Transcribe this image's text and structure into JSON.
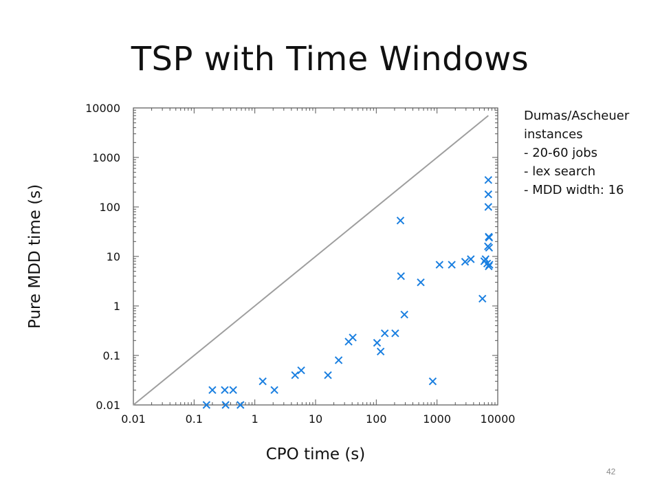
{
  "slide": {
    "title": "TSP with Time Windows",
    "page_number": "42",
    "notes": [
      "Dumas/Ascheuer",
      "instances",
      "- 20-60 jobs",
      "- lex search",
      "- MDD width: 16"
    ]
  },
  "chart_data": {
    "type": "scatter",
    "title": "",
    "xlabel": "CPO time (s)",
    "ylabel": "Pure MDD time (s)",
    "x_scale": "log",
    "y_scale": "log",
    "xlim": [
      0.01,
      10000
    ],
    "ylim": [
      0.01,
      10000
    ],
    "x_ticks": [
      "0.01",
      "0.1",
      "1",
      "10",
      "100",
      "1000",
      "10000"
    ],
    "y_ticks": [
      "0.01",
      "0.1",
      "1",
      "10",
      "100",
      "1000",
      "10000"
    ],
    "grid": false,
    "legend": "none",
    "reference_line": {
      "from": [
        0.01,
        0.01
      ],
      "to": [
        7000,
        7000
      ],
      "color": "#9e9e9e"
    },
    "marker": "x",
    "marker_color": "#1a7fe0",
    "points": [
      [
        0.16,
        0.01
      ],
      [
        0.2,
        0.02
      ],
      [
        0.32,
        0.02
      ],
      [
        0.33,
        0.01
      ],
      [
        0.44,
        0.02
      ],
      [
        0.58,
        0.01
      ],
      [
        1.35,
        0.03
      ],
      [
        2.1,
        0.02
      ],
      [
        4.6,
        0.04
      ],
      [
        5.8,
        0.05
      ],
      [
        16,
        0.04
      ],
      [
        24,
        0.08
      ],
      [
        35,
        0.19
      ],
      [
        41,
        0.23
      ],
      [
        103,
        0.18
      ],
      [
        118,
        0.12
      ],
      [
        138,
        0.28
      ],
      [
        205,
        0.28
      ],
      [
        250,
        53
      ],
      [
        255,
        4.0
      ],
      [
        290,
        0.67
      ],
      [
        540,
        3.0
      ],
      [
        850,
        0.03
      ],
      [
        1100,
        6.8
      ],
      [
        1750,
        6.8
      ],
      [
        2900,
        7.8
      ],
      [
        3600,
        8.8
      ],
      [
        5600,
        1.4
      ],
      [
        6000,
        8.0
      ],
      [
        6300,
        8.8
      ],
      [
        6700,
        7.2
      ],
      [
        6900,
        16
      ],
      [
        7000,
        350
      ],
      [
        7000,
        180
      ],
      [
        7000,
        100
      ],
      [
        7100,
        25
      ],
      [
        7100,
        6.3
      ],
      [
        7200,
        24
      ],
      [
        7200,
        15
      ],
      [
        7300,
        6.8
      ]
    ]
  }
}
